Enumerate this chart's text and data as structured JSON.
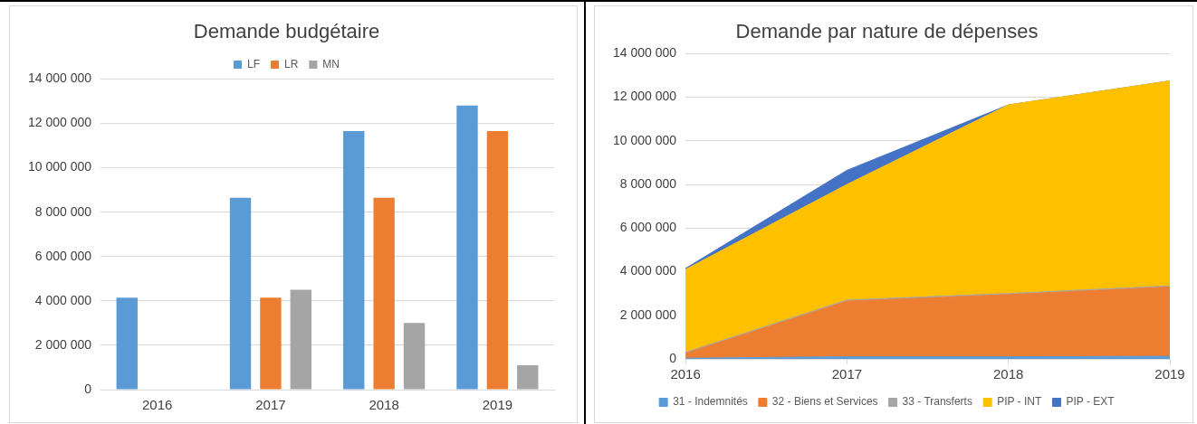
{
  "chart_data": [
    {
      "type": "bar",
      "title": "Demande budgétaire",
      "categories": [
        "2016",
        "2017",
        "2018",
        "2019"
      ],
      "series": [
        {
          "name": "LF",
          "color": "#5b9bd5",
          "values": [
            4150000,
            8650000,
            11650000,
            12800000
          ]
        },
        {
          "name": "LR",
          "color": "#ed7d31",
          "values": [
            null,
            4150000,
            8650000,
            11650000
          ]
        },
        {
          "name": "MN",
          "color": "#a5a5a5",
          "values": [
            null,
            4500000,
            3000000,
            1100000
          ]
        }
      ],
      "ylim": [
        0,
        14000000
      ],
      "yticks": [
        {
          "value": 0,
          "label": "0"
        },
        {
          "value": 2000000,
          "label": "2 000 000"
        },
        {
          "value": 4000000,
          "label": "4 000 000"
        },
        {
          "value": 6000000,
          "label": "6 000 000"
        },
        {
          "value": 8000000,
          "label": "8 000 000"
        },
        {
          "value": 10000000,
          "label": "10 000 000"
        },
        {
          "value": 12000000,
          "label": "12 000 000"
        },
        {
          "value": 14000000,
          "label": "14 000 000"
        }
      ],
      "grid": "y",
      "legend": "top"
    },
    {
      "type": "area",
      "title": "Demande par nature de dépenses",
      "categories": [
        "2016",
        "2017",
        "2018",
        "2019"
      ],
      "stacked": true,
      "series": [
        {
          "name": "31 - Indemnités",
          "color": "#5b9bd5",
          "values": [
            30000,
            100000,
            100000,
            120000
          ]
        },
        {
          "name": "32 - Biens et Services",
          "color": "#ed7d31",
          "values": [
            220000,
            2550000,
            2850000,
            3180000
          ]
        },
        {
          "name": "33 - Transferts",
          "color": "#a5a5a5",
          "values": [
            50000,
            50000,
            50000,
            50000
          ]
        },
        {
          "name": "PIP - INT",
          "color": "#ffc000",
          "values": [
            3800000,
            5300000,
            8650000,
            9400000
          ]
        },
        {
          "name": "PIP - EXT",
          "color": "#4472c4",
          "values": [
            50000,
            650000,
            0,
            0
          ]
        }
      ],
      "ylim": [
        0,
        14000000
      ],
      "yticks": [
        {
          "value": 0,
          "label": "0"
        },
        {
          "value": 2000000,
          "label": "2 000 000"
        },
        {
          "value": 4000000,
          "label": "4 000 000"
        },
        {
          "value": 6000000,
          "label": "6 000 000"
        },
        {
          "value": 8000000,
          "label": "8 000 000"
        },
        {
          "value": 10000000,
          "label": "10 000 000"
        },
        {
          "value": 12000000,
          "label": "12 000 000"
        },
        {
          "value": 14000000,
          "label": "14 000 000"
        }
      ],
      "grid": "y",
      "legend": "bottom"
    }
  ]
}
